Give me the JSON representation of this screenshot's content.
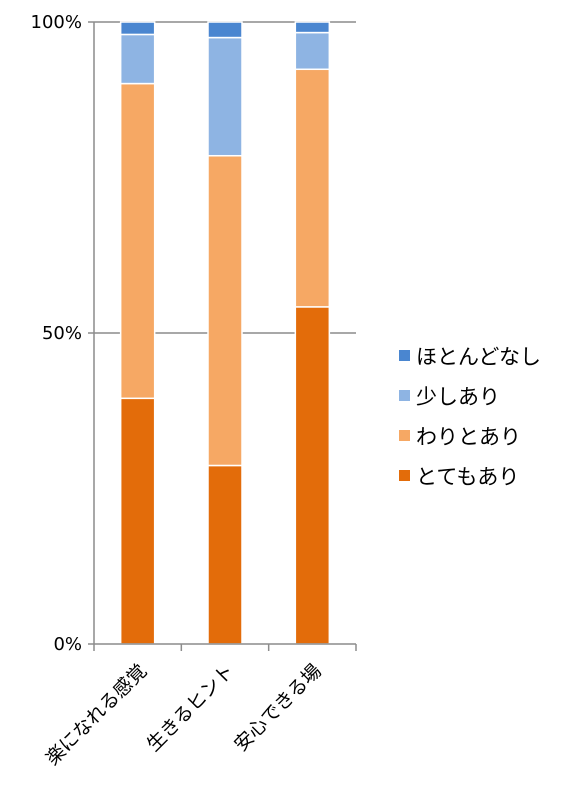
{
  "chart_data": {
    "type": "bar",
    "stacked": true,
    "percent": true,
    "categories": [
      "楽になれる感覚",
      "生きるヒント",
      "安心できる場"
    ],
    "series": [
      {
        "name": "とてもあり",
        "color": "#E36C0A",
        "values": [
          39.5,
          28.7,
          54.2
        ]
      },
      {
        "name": "わりとあり",
        "color": "#F6A864",
        "values": [
          50.6,
          49.8,
          38.2
        ]
      },
      {
        "name": "少しあり",
        "color": "#8EB4E3",
        "values": [
          7.9,
          19.0,
          5.9
        ]
      },
      {
        "name": "ほとんどなし",
        "color": "#4A86D0",
        "values": [
          2.0,
          2.5,
          1.7
        ]
      }
    ],
    "yticks": [
      "0%",
      "50%",
      "100%"
    ],
    "ylim": [
      0,
      100
    ],
    "grid": true,
    "legend": "right"
  }
}
